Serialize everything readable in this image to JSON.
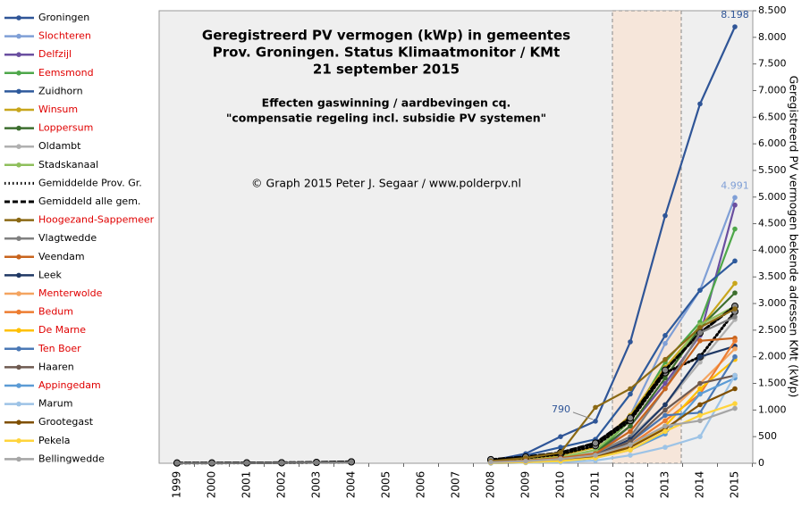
{
  "chart_data": {
    "type": "line",
    "title": [
      "Geregistreerd PV vermogen (kWp) in gemeentes",
      "Prov. Groningen. Status Klimaatmonitor / KMt",
      "21 september 2015"
    ],
    "subtitle": [
      "Effecten gaswinning / aardbevingen cq.",
      "\"compensatie regeling incl. subsidie PV systemen\""
    ],
    "credit": "© Graph 2015 Peter J. Segaar / www.polderpv.nl",
    "y_label": "Geregistreerd PV vermogen bekende adressen KMt (kWp)",
    "categories": [
      "1999",
      "2000",
      "2001",
      "2002",
      "2003",
      "2004",
      "2005",
      "2006",
      "2007",
      "2008",
      "2009",
      "2010",
      "2011",
      "2012",
      "2013",
      "2014",
      "2015"
    ],
    "ylim": [
      0,
      8500
    ],
    "yticks": [
      0,
      500,
      {
        "value": 1000,
        "label": "1.000"
      },
      {
        "value": 1500,
        "label": "1.500"
      },
      {
        "value": 2000,
        "label": "2.000"
      },
      {
        "value": 2500,
        "label": "2.500"
      },
      {
        "value": 3000,
        "label": "3.000"
      },
      {
        "value": 3500,
        "label": "3.500"
      },
      {
        "value": 4000,
        "label": "4.000"
      },
      {
        "value": 4500,
        "label": "4.500"
      },
      {
        "value": 5000,
        "label": "5.000"
      },
      {
        "value": 5500,
        "label": "5.500"
      },
      {
        "value": 6000,
        "label": "6.000"
      },
      {
        "value": 6500,
        "label": "6.500"
      },
      {
        "value": 7000,
        "label": "7.000"
      },
      {
        "value": 7500,
        "label": "7.500"
      },
      {
        "value": 8000,
        "label": "8.000"
      },
      {
        "value": 8500,
        "label": "8.500"
      }
    ],
    "legend": "left",
    "series": [
      {
        "name": "Groningen",
        "color": "#2f5597",
        "label_color": "#000000",
        "values": [
          null,
          null,
          null,
          null,
          null,
          null,
          null,
          null,
          null,
          50,
          180,
          500,
          790,
          2280,
          4650,
          6750,
          8198
        ],
        "value_labels": [
          null,
          null,
          null,
          null,
          null,
          null,
          null,
          null,
          null,
          null,
          null,
          null,
          "790",
          null,
          null,
          null,
          "8.198"
        ]
      },
      {
        "name": "Slochteren",
        "color": "#7f9fd6",
        "label_color": "#e00000",
        "values": [
          null,
          null,
          null,
          null,
          null,
          null,
          null,
          null,
          null,
          30,
          60,
          120,
          200,
          900,
          2250,
          3250,
          4991
        ],
        "value_labels": [
          null,
          null,
          null,
          null,
          null,
          null,
          null,
          null,
          null,
          null,
          null,
          null,
          null,
          null,
          null,
          null,
          "4.991"
        ]
      },
      {
        "name": "Delfzijl",
        "color": "#6a4fa0",
        "label_color": "#e00000",
        "values": [
          null,
          null,
          null,
          null,
          null,
          null,
          null,
          null,
          null,
          20,
          50,
          90,
          150,
          700,
          1500,
          2400,
          4850
        ]
      },
      {
        "name": "Eemsmond",
        "color": "#4ea74a",
        "label_color": "#e00000",
        "values": [
          null,
          null,
          null,
          null,
          null,
          null,
          null,
          null,
          null,
          20,
          40,
          80,
          200,
          800,
          1900,
          2650,
          4400
        ]
      },
      {
        "name": "Zuidhorn",
        "color": "#2e5a9c",
        "label_color": "#000000",
        "values": [
          null,
          null,
          null,
          null,
          null,
          null,
          null,
          null,
          null,
          40,
          150,
          300,
          450,
          1300,
          2400,
          3250,
          3800
        ]
      },
      {
        "name": "Winsum",
        "color": "#c8a61c",
        "label_color": "#e00000",
        "values": [
          null,
          null,
          null,
          null,
          null,
          null,
          null,
          null,
          null,
          30,
          70,
          150,
          300,
          900,
          1800,
          2550,
          3380
        ]
      },
      {
        "name": "Loppersum",
        "color": "#3c6e2e",
        "label_color": "#e00000",
        "values": [
          null,
          null,
          null,
          null,
          null,
          null,
          null,
          null,
          null,
          10,
          30,
          80,
          200,
          700,
          1600,
          2550,
          3200
        ]
      },
      {
        "name": "Oldambt",
        "color": "#b0b0b0",
        "label_color": "#000000",
        "values": [
          null,
          null,
          null,
          null,
          null,
          null,
          null,
          null,
          null,
          20,
          50,
          100,
          200,
          500,
          1100,
          1900,
          2700
        ]
      },
      {
        "name": "Stadskanaal",
        "color": "#8fbf5c",
        "label_color": "#000000",
        "values": [
          null,
          null,
          null,
          null,
          null,
          null,
          null,
          null,
          null,
          20,
          60,
          110,
          250,
          800,
          1700,
          2600,
          2950
        ]
      },
      {
        "name": "Gemiddelde Prov. Gr.",
        "color": "#000000",
        "label_color": "#000000",
        "style": "dotted",
        "values": [
          5,
          6,
          7,
          9,
          15,
          25,
          null,
          null,
          null,
          60,
          100,
          170,
          330,
          800,
          1700,
          2000,
          2850
        ]
      },
      {
        "name": "Gemiddeld alle gem.",
        "color": "#000000",
        "label_color": "#000000",
        "style": "dashed",
        "values": [
          6,
          7,
          8,
          10,
          17,
          28,
          null,
          null,
          null,
          70,
          120,
          200,
          380,
          850,
          1750,
          2450,
          2950
        ]
      },
      {
        "name": "Hoogezand-Sappemeer",
        "color": "#8b6914",
        "label_color": "#e00000",
        "values": [
          null,
          null,
          null,
          null,
          null,
          null,
          null,
          null,
          null,
          40,
          100,
          200,
          1050,
          1400,
          1950,
          2550,
          2900
        ]
      },
      {
        "name": "Vlagtwedde",
        "color": "#808080",
        "label_color": "#000000",
        "values": [
          3,
          4,
          5,
          6,
          10,
          20,
          null,
          null,
          null,
          10,
          30,
          80,
          180,
          500,
          1400,
          2450,
          2750
        ]
      },
      {
        "name": "Veendam",
        "color": "#c8641e",
        "label_color": "#000000",
        "values": [
          null,
          null,
          null,
          null,
          null,
          null,
          null,
          null,
          null,
          20,
          50,
          100,
          180,
          600,
          1400,
          2300,
          2350
        ]
      },
      {
        "name": "Leek",
        "color": "#1f3864",
        "label_color": "#000000",
        "values": [
          null,
          null,
          null,
          null,
          null,
          null,
          null,
          null,
          null,
          10,
          30,
          60,
          150,
          450,
          1100,
          2000,
          2200
        ]
      },
      {
        "name": "Menterwolde",
        "color": "#f4a460",
        "label_color": "#e00000",
        "values": [
          null,
          null,
          null,
          null,
          null,
          null,
          null,
          null,
          null,
          10,
          30,
          70,
          150,
          400,
          900,
          1500,
          2150
        ]
      },
      {
        "name": "Bedum",
        "color": "#ed7d31",
        "label_color": "#e00000",
        "values": [
          null,
          null,
          null,
          null,
          null,
          null,
          null,
          null,
          null,
          10,
          20,
          50,
          120,
          350,
          800,
          1300,
          2300
        ]
      },
      {
        "name": "De Marne",
        "color": "#ffc000",
        "label_color": "#e00000",
        "values": [
          null,
          null,
          null,
          null,
          null,
          null,
          null,
          null,
          null,
          10,
          20,
          40,
          100,
          300,
          700,
          1400,
          1950
        ]
      },
      {
        "name": "Ten Boer",
        "color": "#4a78b5",
        "label_color": "#e00000",
        "values": [
          null,
          null,
          null,
          null,
          null,
          null,
          null,
          null,
          null,
          10,
          30,
          60,
          120,
          400,
          900,
          950,
          2000
        ]
      },
      {
        "name": "Haaren",
        "color": "#6e5a50",
        "label_color": "#000000",
        "values": [
          null,
          null,
          null,
          null,
          null,
          null,
          null,
          null,
          null,
          10,
          30,
          60,
          150,
          400,
          1000,
          1500,
          1650
        ]
      },
      {
        "name": "Appingedam",
        "color": "#5b9bd5",
        "label_color": "#e00000",
        "values": [
          null,
          null,
          null,
          null,
          null,
          null,
          null,
          null,
          null,
          10,
          20,
          40,
          100,
          250,
          550,
          1300,
          1600
        ]
      },
      {
        "name": "Marum",
        "color": "#9dc3e6",
        "label_color": "#000000",
        "values": [
          null,
          null,
          null,
          null,
          null,
          null,
          null,
          null,
          null,
          0,
          10,
          20,
          50,
          150,
          300,
          500,
          1650
        ]
      },
      {
        "name": "Grootegast",
        "color": "#7f4f00",
        "label_color": "#000000",
        "values": [
          null,
          null,
          null,
          null,
          null,
          null,
          null,
          null,
          null,
          10,
          20,
          50,
          120,
          300,
          650,
          1100,
          1400
        ]
      },
      {
        "name": "Pekela",
        "color": "#ffd43b",
        "label_color": "#000000",
        "values": [
          null,
          null,
          null,
          null,
          null,
          null,
          null,
          null,
          null,
          10,
          20,
          40,
          100,
          250,
          600,
          900,
          1120
        ]
      },
      {
        "name": "Bellingwedde",
        "color": "#a5a5a5",
        "label_color": "#000000",
        "values": [
          null,
          null,
          null,
          null,
          null,
          null,
          null,
          null,
          null,
          20,
          40,
          80,
          150,
          350,
          700,
          800,
          1030
        ]
      }
    ]
  }
}
